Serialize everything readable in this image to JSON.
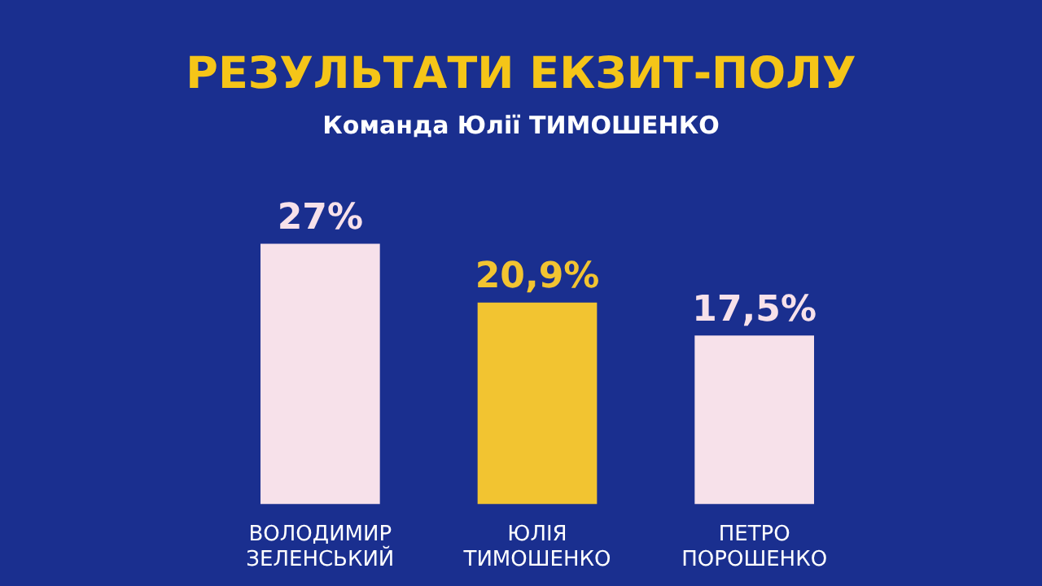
{
  "chart_data": {
    "type": "bar",
    "title": "РЕЗУЛЬТАТИ ЕКЗИТ-ПОЛУ",
    "subtitle": "Команда Юлії ТИМОШЕНКО",
    "categories": [
      "ВОЛОДИМИР ЗЕЛЕНСЬКИЙ",
      "ЮЛІЯ ТИМОШЕНКО",
      "ПЕТРО ПОРОШЕНКО"
    ],
    "values": [
      27,
      20.9,
      17.5
    ],
    "colors": [
      "#f7e1ea",
      "#f2c431",
      "#f7e1ea"
    ],
    "value_labels": [
      "27%",
      "20,9%",
      "17,5%"
    ],
    "tick_labels": "x",
    "grid": false,
    "legend": false
  }
}
